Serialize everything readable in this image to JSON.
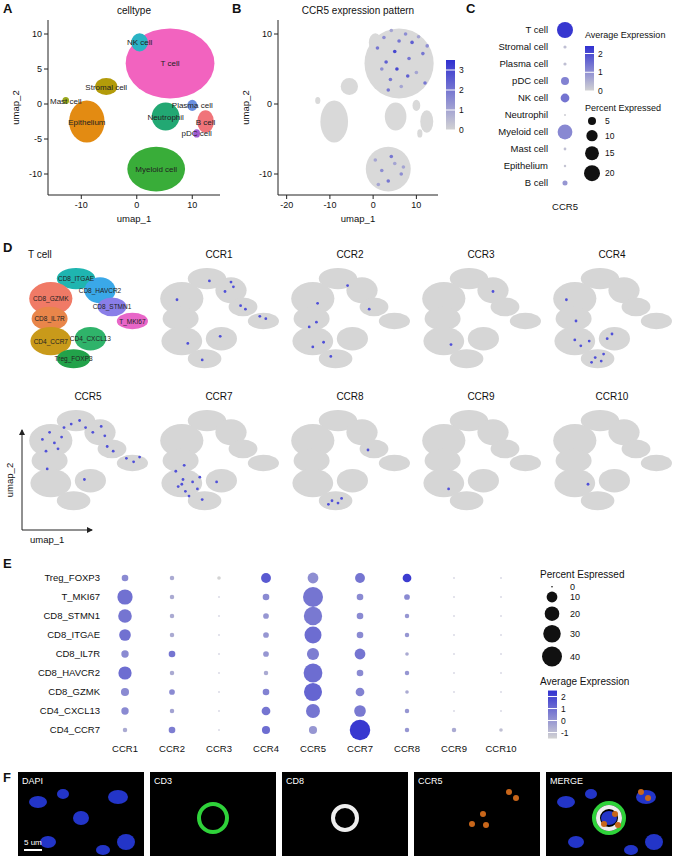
{
  "chart_data": [
    {
      "panel": "A",
      "type": "scatter",
      "title": "celltype",
      "x_label": "umap_1",
      "y_label": "umap_2",
      "xlim": [
        -16,
        15
      ],
      "ylim": [
        -13,
        12
      ],
      "xticks": [
        -10,
        0,
        10
      ],
      "yticks": [
        -10,
        -5,
        0,
        5,
        10
      ],
      "clusters": [
        {
          "name": "T cell",
          "color": "#f263bf",
          "x": 6,
          "y": 5.8,
          "rx": 8,
          "ry": 5
        },
        {
          "name": "NK cell",
          "color": "#2ab3c4",
          "x": 0.5,
          "y": 8.8,
          "rx": 1.5,
          "ry": 1.3
        },
        {
          "name": "Mast cell",
          "color": "#9aa81e",
          "x": -12.8,
          "y": 0.5,
          "rx": 0.6,
          "ry": 0.5
        },
        {
          "name": "Stromal cell",
          "color": "#b39b0a",
          "x": -5.5,
          "y": 2.5,
          "rx": 2,
          "ry": 1.2
        },
        {
          "name": "Epithelium",
          "color": "#e38b12",
          "x": -9,
          "y": -2.5,
          "rx": 3.2,
          "ry": 3
        },
        {
          "name": "Neutrophil",
          "color": "#22a873",
          "x": 5.2,
          "y": -1.8,
          "rx": 2.5,
          "ry": 2
        },
        {
          "name": "Plasma cell",
          "color": "#6a8fe0",
          "x": 10,
          "y": -0.2,
          "rx": 0.9,
          "ry": 0.8
        },
        {
          "name": "B cell",
          "color": "#f0747a",
          "x": 12.4,
          "y": -2.5,
          "rx": 1.5,
          "ry": 1.6
        },
        {
          "name": "pDC cell",
          "color": "#a05ad0",
          "x": 10.8,
          "y": -4.2,
          "rx": 0.6,
          "ry": 0.6
        },
        {
          "name": "Myeloid cell",
          "color": "#39ad39",
          "x": 3.5,
          "y": -9.3,
          "rx": 5.2,
          "ry": 3.2
        }
      ]
    },
    {
      "panel": "B",
      "type": "scatter",
      "title": "CCR5 expression pattern",
      "x_label": "umap_1",
      "y_label": "umap_2",
      "xlim": [
        -22,
        15
      ],
      "ylim": [
        -13,
        12
      ],
      "xticks": [
        -20,
        -10,
        0,
        10
      ],
      "yticks": [
        -10,
        0,
        10
      ],
      "x": [
        1,
        2.5,
        3,
        4.2,
        5,
        6,
        7.5,
        8.3,
        9,
        10.5,
        11.5,
        12.5,
        4,
        6.5,
        8,
        2,
        3.5,
        5.5,
        10,
        12,
        0.5,
        2,
        3.5,
        5,
        6.5,
        1.2,
        4.2,
        7
      ],
      "y": [
        8,
        9.5,
        6,
        10.5,
        7.5,
        9,
        10,
        6.5,
        8.8,
        9.6,
        7.2,
        8.3,
        3.5,
        2.5,
        4,
        5,
        2,
        5,
        4.5,
        3,
        -8,
        -9.5,
        -11,
        -8.5,
        -10,
        -11.5,
        -7.5,
        -9
      ],
      "values": [
        2,
        1.5,
        2.5,
        1,
        3,
        2,
        1.5,
        2,
        2.5,
        1,
        2,
        1.5,
        2,
        1,
        2.5,
        1.5,
        2,
        3,
        1,
        2,
        1,
        1.5,
        2,
        1,
        1.5,
        1,
        2,
        1
      ],
      "colorbar": {
        "lim": [
          0,
          3.5
        ],
        "ticks": [
          0,
          1,
          2,
          3
        ]
      }
    },
    {
      "panel": "C",
      "type": "dot",
      "categories": [
        "T cell",
        "Stromal cell",
        "Plasma cell",
        "pDC cell",
        "NK cell",
        "Neutrophil",
        "Myeloid cell",
        "Mast cell",
        "Epithelium",
        "B cell"
      ],
      "x_categories": [
        "CCR5"
      ],
      "percent": [
        20,
        0.8,
        0.8,
        5,
        6,
        0.3,
        17,
        0.6,
        0.5,
        2
      ],
      "average": [
        2.3,
        0.3,
        0.3,
        1.2,
        1.4,
        0.1,
        1.1,
        0.3,
        0.2,
        0.9
      ],
      "color_legend": {
        "title": "Average Expression",
        "lim": [
          0,
          2.4
        ],
        "ticks": [
          0,
          1,
          2
        ]
      },
      "size_legend": {
        "title": "Percent Expressed",
        "ticks": [
          5,
          10,
          15,
          20
        ]
      }
    },
    {
      "panel": "D",
      "type": "scatter",
      "title": "T cell",
      "x_label": "umap_1",
      "y_label": "umap_2",
      "xlim": [
        0,
        10
      ],
      "ylim": [
        0,
        10
      ],
      "tick_labels": false,
      "color": "#5050d8",
      "clusters": [
        {
          "name": "CD8_ITGAE",
          "color": "#1fb5b0",
          "x": 4.0,
          "y": 8.6,
          "rx": 1.6,
          "ry": 0.9
        },
        {
          "name": "CD8_GZMK",
          "color": "#f07a66",
          "x": 1.9,
          "y": 6.9,
          "rx": 1.8,
          "ry": 1.4
        },
        {
          "name": "CD8_HAVCR2",
          "color": "#3aa8e8",
          "x": 6.0,
          "y": 7.6,
          "rx": 1.3,
          "ry": 1.1
        },
        {
          "name": "CD8_STMN1",
          "color": "#8a7ee8",
          "x": 7.0,
          "y": 6.2,
          "rx": 1.2,
          "ry": 0.8
        },
        {
          "name": "T_MKI67",
          "color": "#e866c8",
          "x": 8.7,
          "y": 5.0,
          "rx": 1.3,
          "ry": 0.7
        },
        {
          "name": "CD8_IL7R",
          "color": "#e9864a",
          "x": 1.8,
          "y": 5.2,
          "rx": 1.5,
          "ry": 1.0
        },
        {
          "name": "CD4_CCR7",
          "color": "#c99a1a",
          "x": 1.9,
          "y": 3.3,
          "rx": 1.7,
          "ry": 1.2
        },
        {
          "name": "CD4_CXCL13",
          "color": "#2fb36a",
          "x": 5.2,
          "y": 3.5,
          "rx": 1.3,
          "ry": 1.0
        },
        {
          "name": "Treg_FOXP3",
          "color": "#22a24a",
          "x": 3.8,
          "y": 1.8,
          "rx": 1.4,
          "ry": 0.8
        }
      ],
      "genes": [
        {
          "name": "CCR1",
          "x": [
            5.5,
            6.2,
            6.8,
            7.2,
            8.4,
            8.9,
            4.2,
            1.5,
            2.4,
            5.1,
            3.6,
            6.0
          ],
          "y": [
            7.5,
            7.9,
            6.3,
            6.0,
            5.4,
            5.2,
            8.4,
            6.8,
            3.1,
            3.7,
            1.7,
            8.3
          ]
        },
        {
          "name": "CCR2",
          "x": [
            1.6,
            2.2,
            2.8,
            1.9,
            4.8,
            6.6,
            3.4,
            2.3
          ],
          "y": [
            4.5,
            4.9,
            3.2,
            2.8,
            8.0,
            6.0,
            2.0,
            6.5
          ]
        },
        {
          "name": "CCR3",
          "x": [
            2.5,
            6.0
          ],
          "y": [
            3.0,
            7.5
          ]
        },
        {
          "name": "CCR4",
          "x": [
            2.4,
            3.1,
            1.9,
            4.6,
            5.0,
            3.6,
            4.1,
            3.3,
            2.0,
            1.2,
            4.3
          ],
          "y": [
            2.9,
            3.3,
            3.4,
            3.5,
            3.9,
            1.9,
            1.6,
            1.5,
            5.0,
            6.8,
            2.2
          ]
        },
        {
          "name": "CCR5",
          "x": [
            1.2,
            1.8,
            2.5,
            2.8,
            1.5,
            3.6,
            4.3,
            4.8,
            5.4,
            6.1,
            6.4,
            6.6,
            7.1,
            8.2,
            8.8,
            9.3,
            2.2,
            1.6,
            4.7,
            3.0
          ],
          "y": [
            7.0,
            7.6,
            6.2,
            7.2,
            6.0,
            8.3,
            8.6,
            8.0,
            7.6,
            8.1,
            7.3,
            6.4,
            6.0,
            5.4,
            5.1,
            5.5,
            6.7,
            4.5,
            3.6,
            8.0
          ]
        },
        {
          "name": "CCR7",
          "x": [
            1.6,
            2.2,
            2.8,
            3.2,
            2.0,
            2.5,
            1.4,
            2.1,
            3.6,
            4.8,
            1.9,
            3.4
          ],
          "y": [
            3.0,
            2.6,
            3.4,
            2.8,
            3.6,
            2.2,
            4.3,
            4.8,
            1.9,
            3.4,
            3.2,
            3.8
          ]
        },
        {
          "name": "CCR8",
          "x": [
            3.5,
            4.0,
            4.3,
            3.2,
            6.5
          ],
          "y": [
            1.8,
            1.6,
            2.0,
            1.5,
            6.1
          ]
        },
        {
          "name": "CCR9",
          "x": [
            2.3
          ],
          "y": [
            2.8
          ]
        },
        {
          "name": "CCR10",
          "x": [
            3.0
          ],
          "y": [
            3.2
          ]
        }
      ]
    },
    {
      "panel": "E",
      "type": "dot",
      "categories": [
        "Treg_FOXP3",
        "T_MKI67",
        "CD8_STMN1",
        "CD8_ITGAE",
        "CD8_IL7R",
        "CD8_HAVCR2",
        "CD8_GZMK",
        "CD4_CXCL13",
        "CD4_CCR7"
      ],
      "x_categories": [
        "CCR1",
        "CCR2",
        "CCR3",
        "CCR4",
        "CCR5",
        "CCR7",
        "CCR8",
        "CCR9",
        "CCR10"
      ],
      "percent": [
        [
          3,
          1,
          0.5,
          8,
          10,
          8,
          6,
          0,
          0
        ],
        [
          22,
          1,
          0,
          3,
          40,
          3,
          2,
          0,
          0
        ],
        [
          17,
          1,
          0,
          2,
          33,
          3,
          1,
          0,
          0
        ],
        [
          12,
          1,
          0,
          2,
          28,
          3,
          1,
          0,
          0
        ],
        [
          4,
          3,
          0,
          2,
          13,
          10,
          0.5,
          0,
          0
        ],
        [
          16,
          1,
          0,
          1,
          35,
          3,
          1,
          0,
          0
        ],
        [
          5,
          2,
          0,
          3,
          32,
          6,
          0.5,
          0,
          0
        ],
        [
          4,
          1,
          0,
          6,
          18,
          12,
          1,
          0,
          0
        ],
        [
          1,
          3,
          0,
          5,
          5,
          42,
          1,
          1,
          0.5
        ]
      ],
      "average": [
        [
          0.3,
          -0.5,
          -1.5,
          1.5,
          0.2,
          0.8,
          2.2,
          -1,
          -1
        ],
        [
          0.9,
          -0.5,
          -1,
          0.3,
          0.8,
          0.3,
          0.3,
          -1,
          -1
        ],
        [
          0.8,
          -0.5,
          -1,
          0,
          0.7,
          0.3,
          0,
          -1,
          -1
        ],
        [
          0.9,
          -0.5,
          -1,
          0,
          1.0,
          0.3,
          0,
          -1,
          -1
        ],
        [
          0.3,
          0.8,
          -1,
          0,
          0.6,
          0.8,
          -0.5,
          -1,
          -1
        ],
        [
          1.0,
          -0.5,
          -1,
          -0.5,
          1.0,
          0.3,
          0,
          -1,
          -1
        ],
        [
          0.3,
          0.3,
          -1,
          0.5,
          1.2,
          0.5,
          -0.5,
          -1,
          -1
        ],
        [
          0.3,
          -0.3,
          -1,
          0.8,
          0.8,
          0.7,
          0,
          -1,
          -1
        ],
        [
          -0.5,
          0.6,
          -1,
          1.0,
          0,
          2.3,
          0,
          -0.5,
          -1
        ]
      ],
      "size_legend": {
        "title": "Percent Espressed",
        "ticks": [
          0,
          10,
          20,
          30,
          40
        ]
      },
      "color_legend": {
        "title": "Average Expression",
        "lim": [
          -1.5,
          2.5
        ],
        "ticks": [
          2,
          1,
          0,
          -1
        ]
      }
    }
  ],
  "panel_F": {
    "panel": "F",
    "images": [
      "DAPI",
      "CD3",
      "CD8",
      "CCR5",
      "MERGE"
    ],
    "scale_bar": "5 um"
  }
}
